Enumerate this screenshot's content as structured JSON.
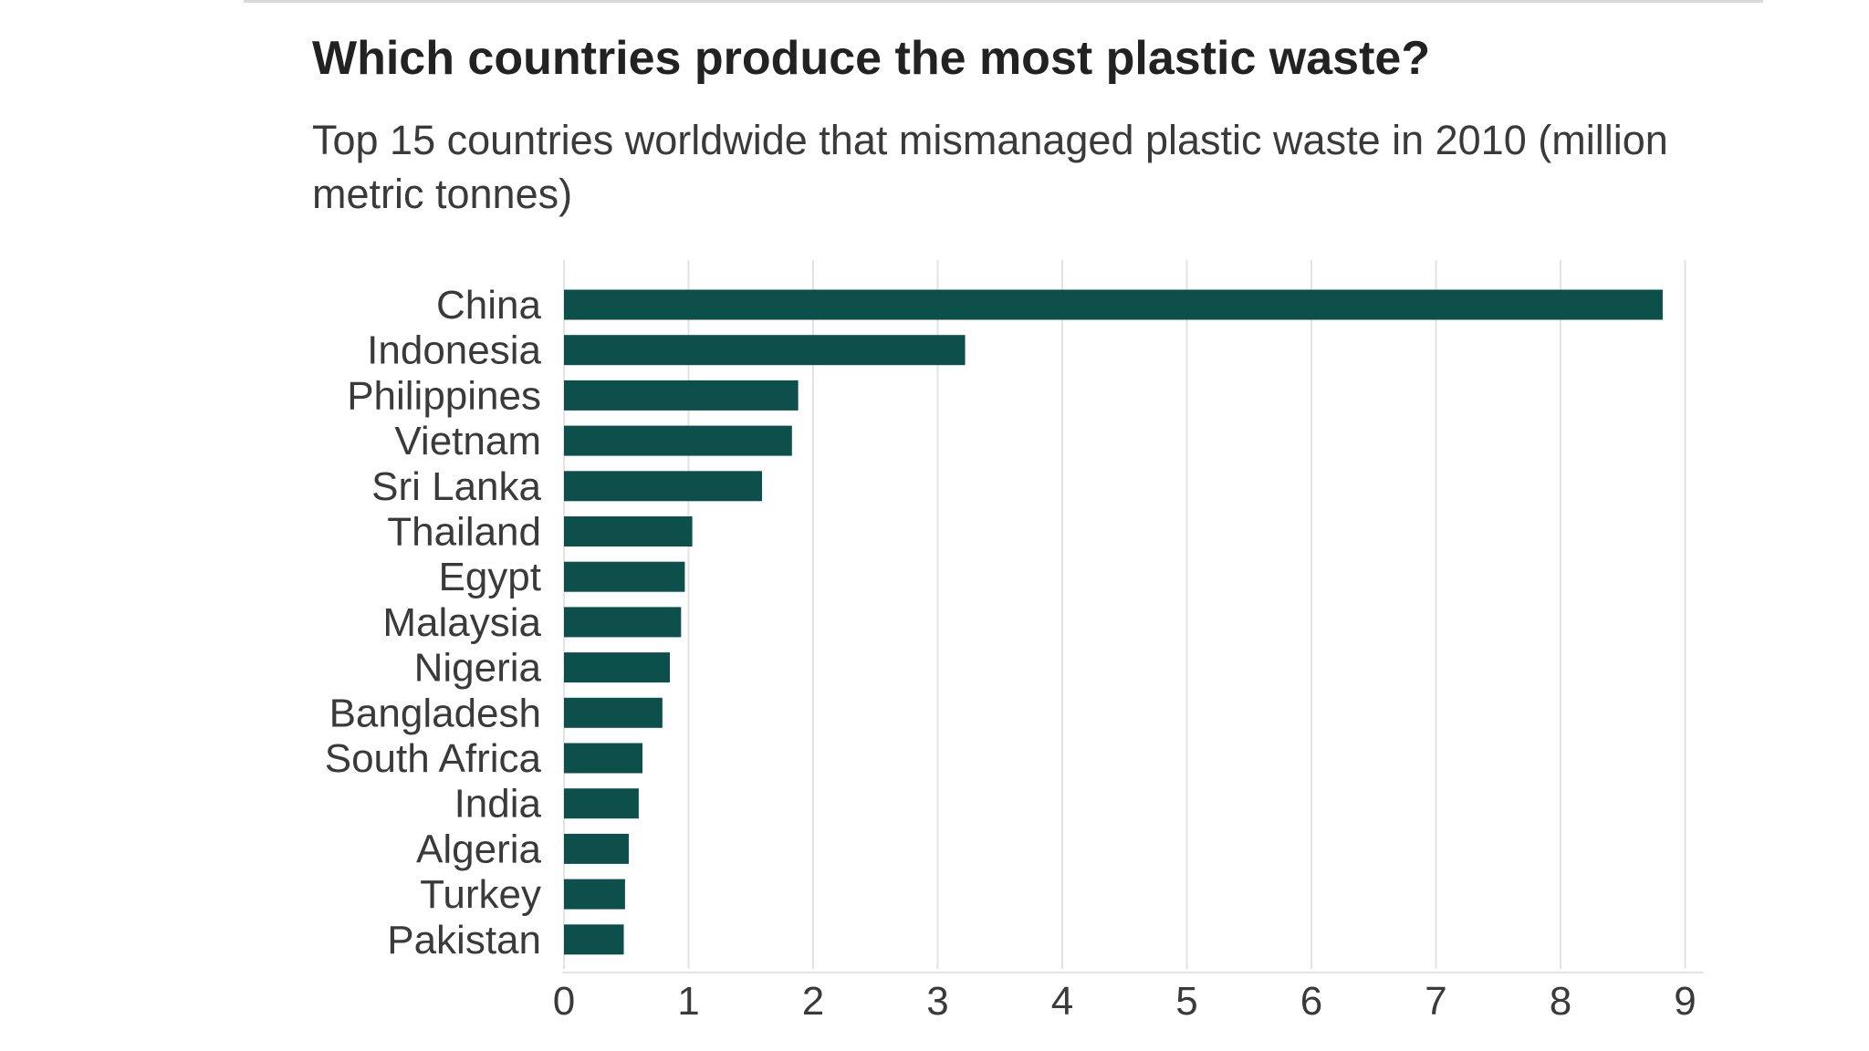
{
  "title": "Which countries produce the most plastic waste?",
  "subtitle": "Top 15 countries worldwide that mismanaged plastic waste in 2010 (million metric tonnes)",
  "colors": {
    "bar": "#0d4f4a",
    "grid": "#e3e3e3",
    "label": "#3a3a3a"
  },
  "chart_data": {
    "type": "bar",
    "orientation": "horizontal",
    "title": "Which countries produce the most plastic waste?",
    "subtitle": "Top 15 countries worldwide that mismanaged plastic waste in 2010 (million metric tonnes)",
    "xlabel": "",
    "ylabel": "",
    "xlim": [
      0,
      9
    ],
    "xticks": [
      "0",
      "1",
      "2",
      "3",
      "4",
      "5",
      "6",
      "7",
      "8",
      "9"
    ],
    "grid": "vertical",
    "categories": [
      "China",
      "Indonesia",
      "Philippines",
      "Vietnam",
      "Sri Lanka",
      "Thailand",
      "Egypt",
      "Malaysia",
      "Nigeria",
      "Bangladesh",
      "South Africa",
      "India",
      "Algeria",
      "Turkey",
      "Pakistan"
    ],
    "values": [
      8.82,
      3.22,
      1.88,
      1.83,
      1.59,
      1.03,
      0.97,
      0.94,
      0.85,
      0.79,
      0.63,
      0.6,
      0.52,
      0.49,
      0.48
    ]
  }
}
